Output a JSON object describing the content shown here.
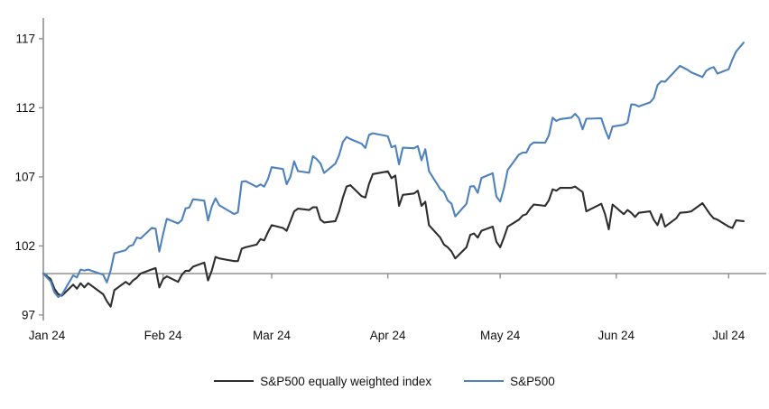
{
  "chart_data": {
    "type": "line",
    "title": "",
    "xlabel": "",
    "ylabel": "",
    "grid": "baseline-only",
    "baseline_value": 100,
    "ylim": [
      96,
      118.5
    ],
    "y_ticks": [
      97,
      102,
      107,
      112,
      117
    ],
    "x_ticks": [
      {
        "label": "Jan 24",
        "day": 0
      },
      {
        "label": "Feb 24",
        "day": 31
      },
      {
        "label": "Mar 24",
        "day": 60
      },
      {
        "label": "Apr 24",
        "day": 91
      },
      {
        "label": "May 24",
        "day": 121
      },
      {
        "label": "Jun 24",
        "day": 152
      },
      {
        "label": "Jul 24",
        "day": 182
      }
    ],
    "axis_color": "#909090",
    "text_color": "#111111",
    "legend_position": "bottom-center",
    "days": [
      -1,
      1,
      2,
      3,
      4,
      7,
      8,
      9,
      10,
      11,
      15,
      16,
      17,
      18,
      21,
      22,
      23,
      24,
      25,
      28,
      29,
      30,
      31,
      32,
      35,
      36,
      37,
      38,
      39,
      42,
      43,
      44,
      45,
      46,
      50,
      51,
      52,
      53,
      56,
      57,
      58,
      59,
      60,
      63,
      64,
      65,
      66,
      67,
      70,
      71,
      72,
      73,
      74,
      77,
      78,
      79,
      80,
      81,
      84,
      85,
      86,
      87,
      91,
      92,
      93,
      94,
      95,
      98,
      99,
      100,
      101,
      102,
      105,
      106,
      107,
      108,
      109,
      112,
      113,
      114,
      115,
      116,
      119,
      120,
      121,
      122,
      123,
      126,
      127,
      128,
      129,
      130,
      133,
      134,
      135,
      136,
      137,
      140,
      141,
      142,
      143,
      144,
      148,
      149,
      150,
      151,
      154,
      155,
      156,
      157,
      158,
      161,
      162,
      163,
      164,
      165,
      168,
      169,
      171,
      172,
      175,
      176,
      177,
      178,
      179,
      182,
      183,
      184,
      186
    ],
    "series": [
      {
        "name": "S&P500 equally weighted index",
        "color": "#2e2e2e",
        "values": [
          100,
          99.6,
          98.9,
          98.5,
          98.4,
          99.2,
          98.9,
          99.3,
          99.0,
          99.3,
          98.5,
          98.0,
          97.6,
          98.8,
          99.4,
          99.2,
          99.5,
          99.7,
          100.0,
          100.3,
          100.4,
          99.0,
          99.6,
          99.8,
          99.4,
          99.9,
          100.2,
          100.2,
          100.5,
          100.8,
          99.5,
          100.2,
          101.2,
          101.1,
          100.9,
          100.9,
          101.8,
          101.9,
          102.1,
          102.5,
          102.4,
          103.0,
          103.5,
          103.3,
          103.1,
          103.8,
          104.5,
          104.7,
          104.6,
          104.8,
          104.8,
          103.9,
          103.7,
          103.8,
          104.5,
          105.5,
          106.3,
          106.4,
          105.6,
          105.5,
          106.5,
          107.2,
          107.4,
          106.9,
          107.1,
          104.9,
          105.7,
          105.8,
          106.0,
          104.9,
          105.2,
          103.5,
          102.6,
          102.1,
          101.9,
          101.6,
          101.1,
          101.9,
          102.8,
          102.9,
          102.6,
          103.1,
          103.4,
          102.3,
          101.9,
          102.6,
          103.4,
          103.9,
          104.2,
          104.3,
          104.7,
          105.0,
          104.9,
          105.3,
          106.1,
          106.0,
          106.2,
          106.2,
          106.3,
          106.1,
          105.9,
          104.5,
          105.05,
          104.3,
          103.2,
          105.0,
          104.3,
          104.6,
          104.4,
          104.1,
          104.4,
          104.5,
          103.9,
          103.5,
          104.3,
          103.4,
          104.0,
          104.4,
          104.45,
          104.5,
          105.1,
          104.7,
          104.3,
          104.0,
          103.9,
          103.4,
          103.3,
          103.85,
          103.8
        ]
      },
      {
        "name": "S&P500",
        "color": "#4f81bd",
        "values": [
          100,
          99.43,
          98.64,
          98.3,
          98.48,
          99.87,
          99.72,
          100.29,
          100.22,
          100.29,
          99.92,
          99.36,
          100.23,
          101.47,
          101.69,
          101.99,
          102.07,
          102.61,
          102.54,
          103.31,
          103.25,
          101.59,
          102.86,
          103.96,
          103.63,
          103.87,
          104.72,
          104.78,
          105.38,
          105.28,
          103.84,
          104.84,
          105.45,
          104.94,
          104.31,
          104.44,
          106.65,
          106.69,
          106.28,
          106.46,
          106.29,
          106.84,
          107.7,
          107.57,
          106.47,
          107.02,
          108.13,
          107.42,
          107.3,
          108.5,
          108.29,
          107.98,
          107.28,
          107.96,
          108.57,
          109.53,
          109.89,
          109.74,
          109.4,
          109.09,
          110.04,
          110.16,
          109.94,
          109.14,
          109.26,
          107.91,
          109.11,
          109.07,
          109.23,
          108.2,
          109.0,
          107.41,
          106.12,
          105.9,
          105.29,
          105.06,
          104.14,
          105.05,
          106.3,
          106.33,
          105.84,
          106.92,
          107.26,
          105.57,
          105.21,
          106.17,
          107.5,
          108.61,
          108.76,
          108.76,
          109.31,
          109.49,
          109.47,
          110.0,
          111.29,
          111.05,
          111.18,
          111.29,
          111.56,
          111.26,
          110.44,
          111.21,
          111.24,
          110.42,
          109.76,
          110.64,
          110.77,
          110.93,
          112.25,
          112.23,
          112.1,
          112.39,
          112.7,
          113.65,
          113.92,
          113.88,
          114.75,
          115.04,
          114.75,
          114.57,
          114.22,
          114.67,
          114.85,
          114.95,
          114.48,
          114.79,
          115.5,
          116.08,
          116.72
        ]
      }
    ]
  }
}
